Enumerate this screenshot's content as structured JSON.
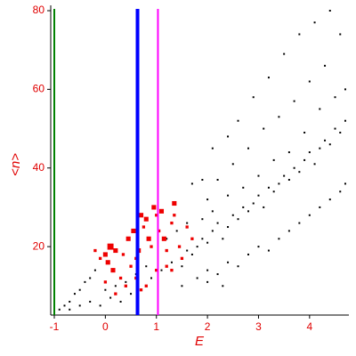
{
  "chart_data": {
    "type": "scatter",
    "x_label": "E",
    "y_label": "<n>",
    "xlim": [
      -1.07,
      4.77
    ],
    "ylim": [
      2.6,
      80
    ],
    "xticks": [
      -1,
      0,
      1,
      2,
      3,
      4
    ],
    "yticks": [
      20,
      40,
      60,
      80
    ],
    "vlines": [
      {
        "x": -1,
        "color": "#008000"
      },
      {
        "x": 0.63,
        "color": "#0000ff"
      },
      {
        "x": 1.03,
        "color": "#ff00ff"
      }
    ],
    "series": [
      {
        "color": "#000000",
        "x": [
          -0.9,
          -0.8,
          -0.7,
          -0.6,
          -0.5,
          -0.4,
          -0.3,
          -0.2,
          -0.7,
          -0.5,
          -0.3,
          -0.1,
          0.1,
          0.3,
          0.5,
          0.0,
          0.2,
          0.4,
          0.6,
          0.8,
          0.9,
          1.1,
          1.3,
          1.5,
          1.6,
          1.7,
          1.8,
          1.9,
          2.0,
          2.1,
          2.2,
          2.3,
          2.4,
          2.5,
          2.6,
          2.7,
          2.8,
          2.9,
          3.0,
          3.1,
          3.2,
          3.3,
          3.4,
          3.5,
          3.6,
          3.7,
          3.8,
          3.9,
          4.0,
          4.1,
          4.2,
          4.3,
          4.4,
          4.5,
          4.6,
          4.7,
          1.5,
          1.8,
          2.0,
          2.2,
          2.4,
          2.6,
          2.8,
          3.0,
          3.2,
          3.4,
          3.6,
          3.8,
          4.0,
          4.2,
          4.4,
          4.6,
          4.7,
          2.0,
          2.3,
          1.7,
          1.9,
          2.1,
          2.4,
          2.6,
          2.9,
          3.2,
          3.5,
          3.8,
          4.1,
          4.4,
          4.6,
          4.3,
          4.0,
          3.7,
          3.4,
          3.1,
          2.8,
          2.5,
          2.2,
          2.0,
          3.6,
          3.9,
          4.2,
          4.5,
          4.7,
          3.3,
          3.0,
          2.7,
          2.4,
          2.1,
          1.9,
          1.6,
          1.4,
          1.2
        ],
        "values": [
          4,
          5,
          6,
          8,
          9,
          11,
          12,
          14,
          4,
          5,
          6,
          5,
          7,
          6,
          8,
          9,
          10,
          11,
          13,
          15,
          12,
          14,
          16,
          15,
          19,
          18,
          20,
          22,
          21,
          24,
          26,
          22,
          25,
          28,
          27,
          30,
          29,
          31,
          33,
          30,
          35,
          34,
          36,
          38,
          37,
          40,
          39,
          42,
          44,
          41,
          45,
          47,
          46,
          50,
          49,
          52,
          10,
          12,
          14,
          13,
          16,
          15,
          18,
          20,
          19,
          22,
          24,
          26,
          28,
          30,
          32,
          34,
          36,
          11,
          10,
          36,
          37,
          45,
          48,
          52,
          58,
          63,
          69,
          74,
          77,
          80,
          74,
          66,
          62,
          57,
          53,
          50,
          45,
          41,
          37,
          32,
          44,
          49,
          55,
          58,
          60,
          42,
          38,
          35,
          33,
          29,
          27,
          26,
          24,
          22
        ]
      },
      {
        "color": "#ee0000",
        "x": [
          0.0,
          0.1,
          0.2,
          0.05,
          0.15,
          0.3,
          0.0,
          0.2,
          0.4,
          0.5,
          0.45,
          0.55,
          0.6,
          0.65,
          0.7,
          0.75,
          0.8,
          0.85,
          0.9,
          0.95,
          1.0,
          1.05,
          1.1,
          1.15,
          1.2,
          1.3,
          1.35,
          1.45,
          1.5,
          1.6,
          1.7,
          1.35,
          0.6,
          0.8,
          1.0,
          1.2,
          -0.2,
          -0.1,
          0.35,
          1.3,
          0.7
        ],
        "values": [
          18,
          20,
          19,
          16,
          14,
          12,
          11,
          8,
          10,
          15,
          22,
          24,
          17,
          19,
          28,
          25,
          27,
          22,
          20,
          30,
          28,
          24,
          29,
          22,
          19,
          26,
          28,
          20,
          17,
          25,
          22,
          31,
          12,
          10,
          14,
          15,
          19,
          17,
          18,
          14,
          9
        ],
        "sizes": [
          2,
          3,
          2,
          2,
          2,
          1,
          1,
          1,
          1,
          1,
          2,
          2,
          1,
          2,
          2,
          1,
          2,
          2,
          1,
          2,
          1,
          1,
          2,
          2,
          1,
          1,
          1,
          1,
          1,
          1,
          1,
          2,
          1,
          1,
          1,
          1,
          1,
          1,
          1,
          1,
          1
        ]
      }
    ]
  }
}
